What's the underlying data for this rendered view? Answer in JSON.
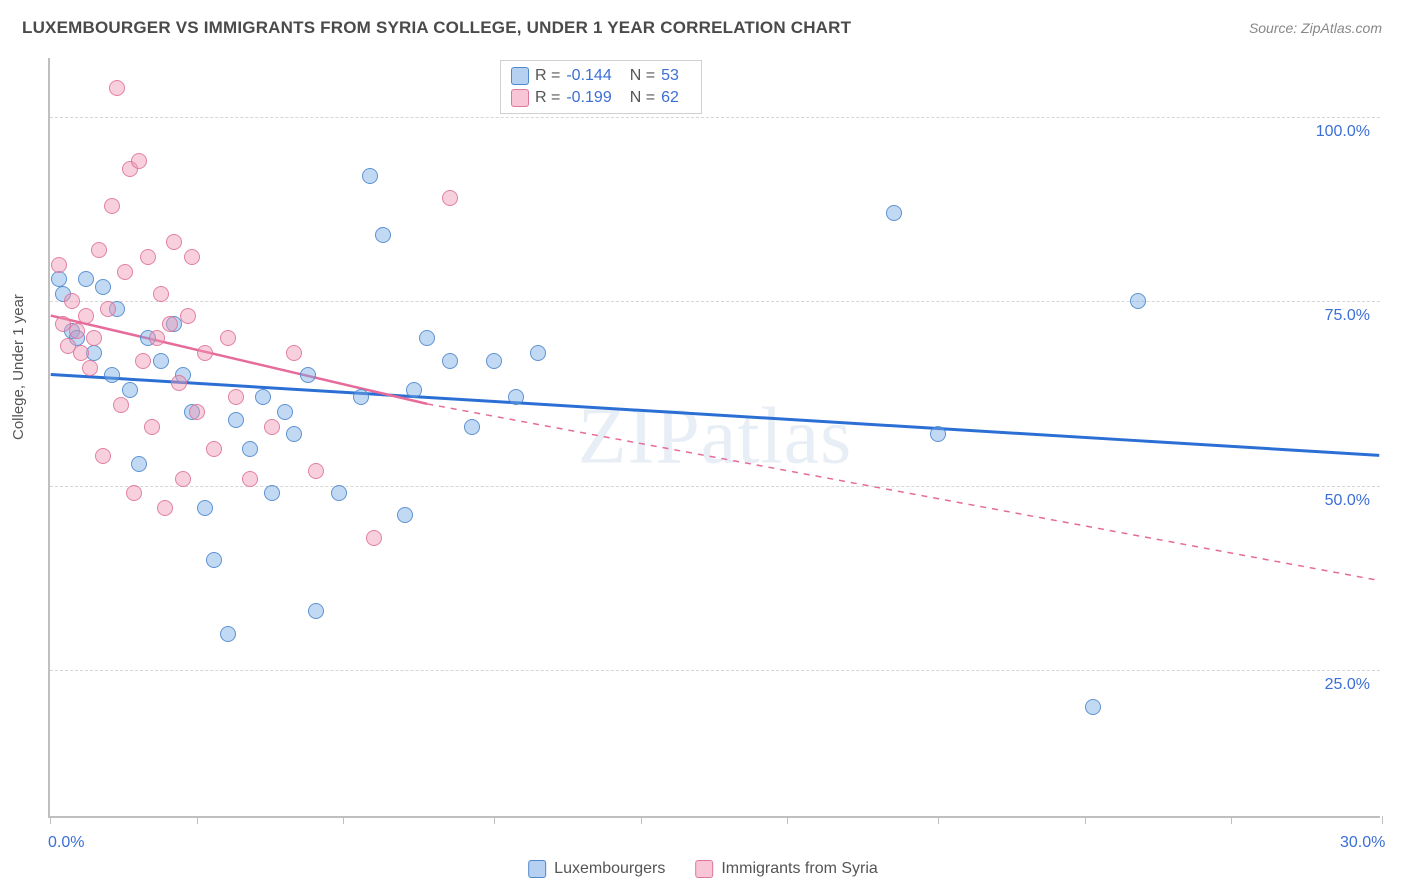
{
  "title": "LUXEMBOURGER VS IMMIGRANTS FROM SYRIA COLLEGE, UNDER 1 YEAR CORRELATION CHART",
  "source": "Source: ZipAtlas.com",
  "watermark": "ZIPatlas",
  "chart": {
    "type": "scatter",
    "y_axis_title": "College, Under 1 year",
    "xlim": [
      0,
      30
    ],
    "ylim": [
      5,
      108
    ],
    "x_ticks": [
      0,
      3.3,
      6.6,
      10,
      13.3,
      16.6,
      20,
      23.3,
      26.6,
      30
    ],
    "x_tick_labels": {
      "0": "0.0%",
      "30": "30.0%"
    },
    "y_gridlines": [
      25,
      50,
      75,
      100
    ],
    "y_tick_labels": {
      "25": "25.0%",
      "50": "50.0%",
      "75": "75.0%",
      "100": "100.0%"
    },
    "background_color": "#ffffff",
    "grid_color": "#d6d6d6",
    "axis_color": "#bfbfbf",
    "label_color": "#3b6fd6",
    "title_color": "#4a4a4a",
    "point_radius": 8,
    "series": [
      {
        "name": "Luxembourgers",
        "color_fill": "rgba(120,170,230,0.45)",
        "color_stroke": "rgba(70,130,200,0.8)",
        "trend_color": "#2b6fd4",
        "trend_dash": "none",
        "trend": {
          "x1": 0,
          "y1": 65,
          "x2": 30,
          "y2": 54
        },
        "R": "-0.144",
        "N": "53",
        "points": [
          [
            0.2,
            78
          ],
          [
            0.3,
            76
          ],
          [
            0.5,
            71
          ],
          [
            0.6,
            70
          ],
          [
            0.8,
            78
          ],
          [
            1.0,
            68
          ],
          [
            1.2,
            77
          ],
          [
            1.4,
            65
          ],
          [
            1.5,
            74
          ],
          [
            1.8,
            63
          ],
          [
            2.0,
            53
          ],
          [
            2.2,
            70
          ],
          [
            2.5,
            67
          ],
          [
            2.8,
            72
          ],
          [
            3.0,
            65
          ],
          [
            3.2,
            60
          ],
          [
            3.5,
            47
          ],
          [
            3.7,
            40
          ],
          [
            4.0,
            30
          ],
          [
            4.2,
            59
          ],
          [
            4.5,
            55
          ],
          [
            4.8,
            62
          ],
          [
            5.0,
            49
          ],
          [
            5.3,
            60
          ],
          [
            5.5,
            57
          ],
          [
            5.8,
            65
          ],
          [
            6.0,
            33
          ],
          [
            6.5,
            49
          ],
          [
            7.0,
            62
          ],
          [
            7.2,
            92
          ],
          [
            7.5,
            84
          ],
          [
            8.0,
            46
          ],
          [
            8.2,
            63
          ],
          [
            8.5,
            70
          ],
          [
            9.0,
            67
          ],
          [
            9.5,
            58
          ],
          [
            10.0,
            67
          ],
          [
            10.5,
            62
          ],
          [
            11.0,
            68
          ],
          [
            19.0,
            87
          ],
          [
            20.0,
            57
          ],
          [
            23.5,
            20
          ],
          [
            24.5,
            75
          ]
        ]
      },
      {
        "name": "Immigrants from Syria",
        "color_fill": "rgba(240,150,180,0.45)",
        "color_stroke": "rgba(220,110,150,0.8)",
        "trend_color": "#e76b9a",
        "trend_dash": "solid-then-dashed",
        "trend_solid": {
          "x1": 0,
          "y1": 73,
          "x2": 8.5,
          "y2": 61
        },
        "trend_dashed": {
          "x1": 8.5,
          "y1": 61,
          "x2": 30,
          "y2": 37
        },
        "R": "-0.199",
        "N": "62",
        "points": [
          [
            0.2,
            80
          ],
          [
            0.3,
            72
          ],
          [
            0.4,
            69
          ],
          [
            0.5,
            75
          ],
          [
            0.6,
            71
          ],
          [
            0.7,
            68
          ],
          [
            0.8,
            73
          ],
          [
            0.9,
            66
          ],
          [
            1.0,
            70
          ],
          [
            1.1,
            82
          ],
          [
            1.2,
            54
          ],
          [
            1.3,
            74
          ],
          [
            1.4,
            88
          ],
          [
            1.5,
            104
          ],
          [
            1.6,
            61
          ],
          [
            1.7,
            79
          ],
          [
            1.8,
            93
          ],
          [
            1.9,
            49
          ],
          [
            2.0,
            94
          ],
          [
            2.1,
            67
          ],
          [
            2.2,
            81
          ],
          [
            2.3,
            58
          ],
          [
            2.4,
            70
          ],
          [
            2.5,
            76
          ],
          [
            2.6,
            47
          ],
          [
            2.7,
            72
          ],
          [
            2.8,
            83
          ],
          [
            2.9,
            64
          ],
          [
            3.0,
            51
          ],
          [
            3.1,
            73
          ],
          [
            3.2,
            81
          ],
          [
            3.3,
            60
          ],
          [
            3.5,
            68
          ],
          [
            3.7,
            55
          ],
          [
            4.0,
            70
          ],
          [
            4.2,
            62
          ],
          [
            4.5,
            51
          ],
          [
            5.0,
            58
          ],
          [
            5.5,
            68
          ],
          [
            6.0,
            52
          ],
          [
            7.3,
            43
          ],
          [
            9.0,
            89
          ]
        ]
      }
    ]
  },
  "legend_bottom": [
    {
      "swatch": "blue",
      "label": "Luxembourgers"
    },
    {
      "swatch": "pink",
      "label": "Immigrants from Syria"
    }
  ]
}
